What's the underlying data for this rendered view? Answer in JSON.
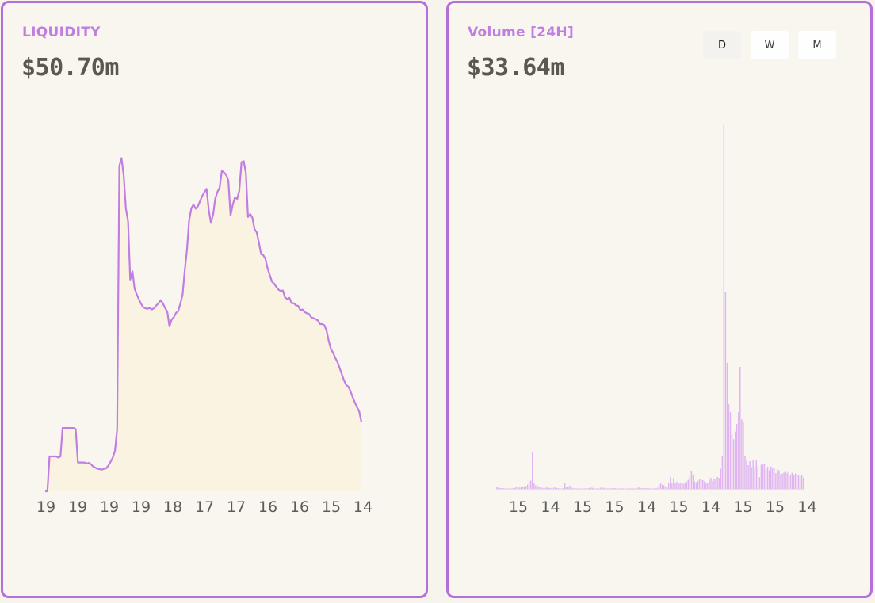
{
  "liquidity_panel": {
    "title": "LIQUIDITY",
    "value": "$50.70m"
  },
  "volume_panel": {
    "title": "Volume [24H]",
    "value": "$33.64m",
    "timeframe_buttons": [
      {
        "label": "D",
        "active": true
      },
      {
        "label": "W",
        "active": false
      },
      {
        "label": "M",
        "active": false
      }
    ]
  },
  "colors": {
    "accent": "#b56fd9",
    "line": "#c07ee2",
    "area_fill": "#fbf3e2",
    "bar": "#e0b3f2",
    "bar_peak": "#f2cf88"
  },
  "chart_data": [
    {
      "type": "area",
      "x_tick_labels": [
        "19",
        "19",
        "19",
        "19",
        "18",
        "17",
        "17",
        "16",
        "16",
        "15",
        "14"
      ],
      "grid": false,
      "values": [
        0.0,
        0.0,
        9.3,
        9.3,
        9.3,
        9.3,
        9.0,
        9.3,
        16.9,
        16.9,
        16.9,
        16.9,
        16.9,
        16.9,
        16.6,
        7.7,
        7.7,
        7.7,
        7.7,
        7.4,
        7.6,
        7.2,
        6.6,
        6.3,
        6.0,
        5.9,
        5.8,
        6.0,
        6.1,
        6.9,
        7.9,
        9.0,
        10.8,
        16.6,
        86.8,
        88.9,
        84.3,
        75.5,
        72.0,
        56.5,
        58.7,
        54.1,
        52.5,
        51.2,
        50.0,
        49.1,
        48.8,
        48.7,
        48.9,
        48.5,
        48.9,
        49.6,
        50.2,
        51.0,
        50.1,
        48.9,
        47.9,
        44.0,
        45.8,
        46.5,
        47.6,
        48.1,
        50.1,
        52.5,
        58.9,
        64.4,
        72.2,
        75.5,
        76.5,
        75.4,
        76.0,
        77.4,
        78.8,
        79.8,
        80.7,
        75.1,
        71.6,
        73.8,
        78.1,
        79.9,
        81.0,
        85.5,
        85.1,
        84.4,
        82.9,
        73.6,
        76.4,
        78.4,
        78.0,
        80.2,
        87.8,
        88.1,
        85.1,
        73.2,
        74.0,
        73.0,
        69.9,
        69.1,
        66.3,
        63.3,
        63.0,
        62.0,
        59.4,
        57.7,
        55.9,
        55.4,
        54.5,
        53.8,
        53.4,
        53.6,
        51.7,
        51.3,
        51.6,
        50.2,
        50.2,
        49.6,
        49.5,
        48.3,
        48.5,
        47.8,
        47.5,
        47.3,
        46.4,
        46.2,
        45.9,
        45.6,
        44.6,
        44.6,
        44.3,
        42.9,
        40.2,
        37.9,
        37.0,
        35.6,
        34.5,
        32.9,
        31.3,
        29.6,
        28.4,
        27.9,
        26.7,
        25.1,
        23.7,
        22.4,
        21.3,
        18.5
      ]
    },
    {
      "type": "bar",
      "x_tick_labels": [
        "15",
        "14",
        "15",
        "15",
        "14",
        "15",
        "14",
        "15",
        "15",
        "14"
      ],
      "grid": false,
      "values": [
        0.6,
        0.4,
        0.2,
        0.2,
        0.2,
        0.1,
        0.1,
        0.1,
        0.1,
        0.1,
        0.2,
        0.3,
        0.5,
        0.4,
        0.4,
        0.6,
        0.6,
        0.7,
        0.8,
        1.2,
        2.1,
        2.3,
        10.0,
        1.5,
        1.0,
        0.9,
        0.6,
        0.5,
        0.3,
        0.3,
        0.3,
        0.4,
        0.3,
        0.2,
        0.3,
        0.3,
        0.4,
        0.2,
        0.2,
        0.1,
        0.1,
        0.2,
        1.7,
        0.5,
        0.5,
        0.9,
        0.5,
        0.2,
        0.1,
        0.1,
        0.1,
        0.0,
        0.0,
        0.0,
        0.0,
        0.1,
        0.1,
        0.2,
        0.4,
        0.3,
        0.2,
        0.1,
        0.1,
        0.1,
        0.3,
        0.5,
        0.3,
        0.1,
        0.1,
        0.1,
        0.1,
        0.2,
        0.2,
        0.2,
        0.1,
        0.1,
        0.1,
        0.0,
        0.1,
        0.0,
        0.0,
        0.1,
        0.1,
        0.1,
        0.1,
        0.1,
        0.1,
        0.3,
        0.6,
        0.2,
        0.2,
        0.1,
        0.2,
        0.2,
        0.2,
        0.3,
        0.1,
        0.1,
        0.1,
        0.3,
        1.0,
        1.5,
        1.2,
        1.0,
        0.7,
        0.4,
        1.5,
        3.2,
        1.7,
        3.0,
        1.5,
        2.0,
        1.4,
        1.7,
        1.5,
        1.4,
        1.6,
        2.0,
        2.5,
        3.5,
        5.0,
        3.7,
        2.0,
        1.8,
        2.2,
        2.7,
        2.5,
        2.4,
        2.1,
        1.6,
        1.8,
        2.5,
        3.0,
        2.2,
        2.7,
        2.8,
        3.3,
        3.0,
        5.5,
        9.0,
        100.0,
        54.0,
        34.5,
        23.2,
        21.0,
        15.0,
        13.6,
        15.7,
        17.8,
        21.0,
        33.4,
        19.0,
        18.3,
        9.0,
        7.8,
        6.5,
        7.6,
        6.0,
        7.8,
        6.0,
        8.0,
        6.1,
        3.2,
        6.6,
        7.0,
        6.8,
        5.4,
        6.1,
        5.1,
        6.1,
        5.8,
        5.6,
        4.3,
        5.3,
        5.1,
        4.0,
        4.2,
        4.5,
        5.0,
        4.4,
        4.6,
        3.8,
        4.4,
        3.7,
        4.2,
        4.1,
        3.9,
        3.4,
        3.7,
        3.1
      ]
    }
  ]
}
